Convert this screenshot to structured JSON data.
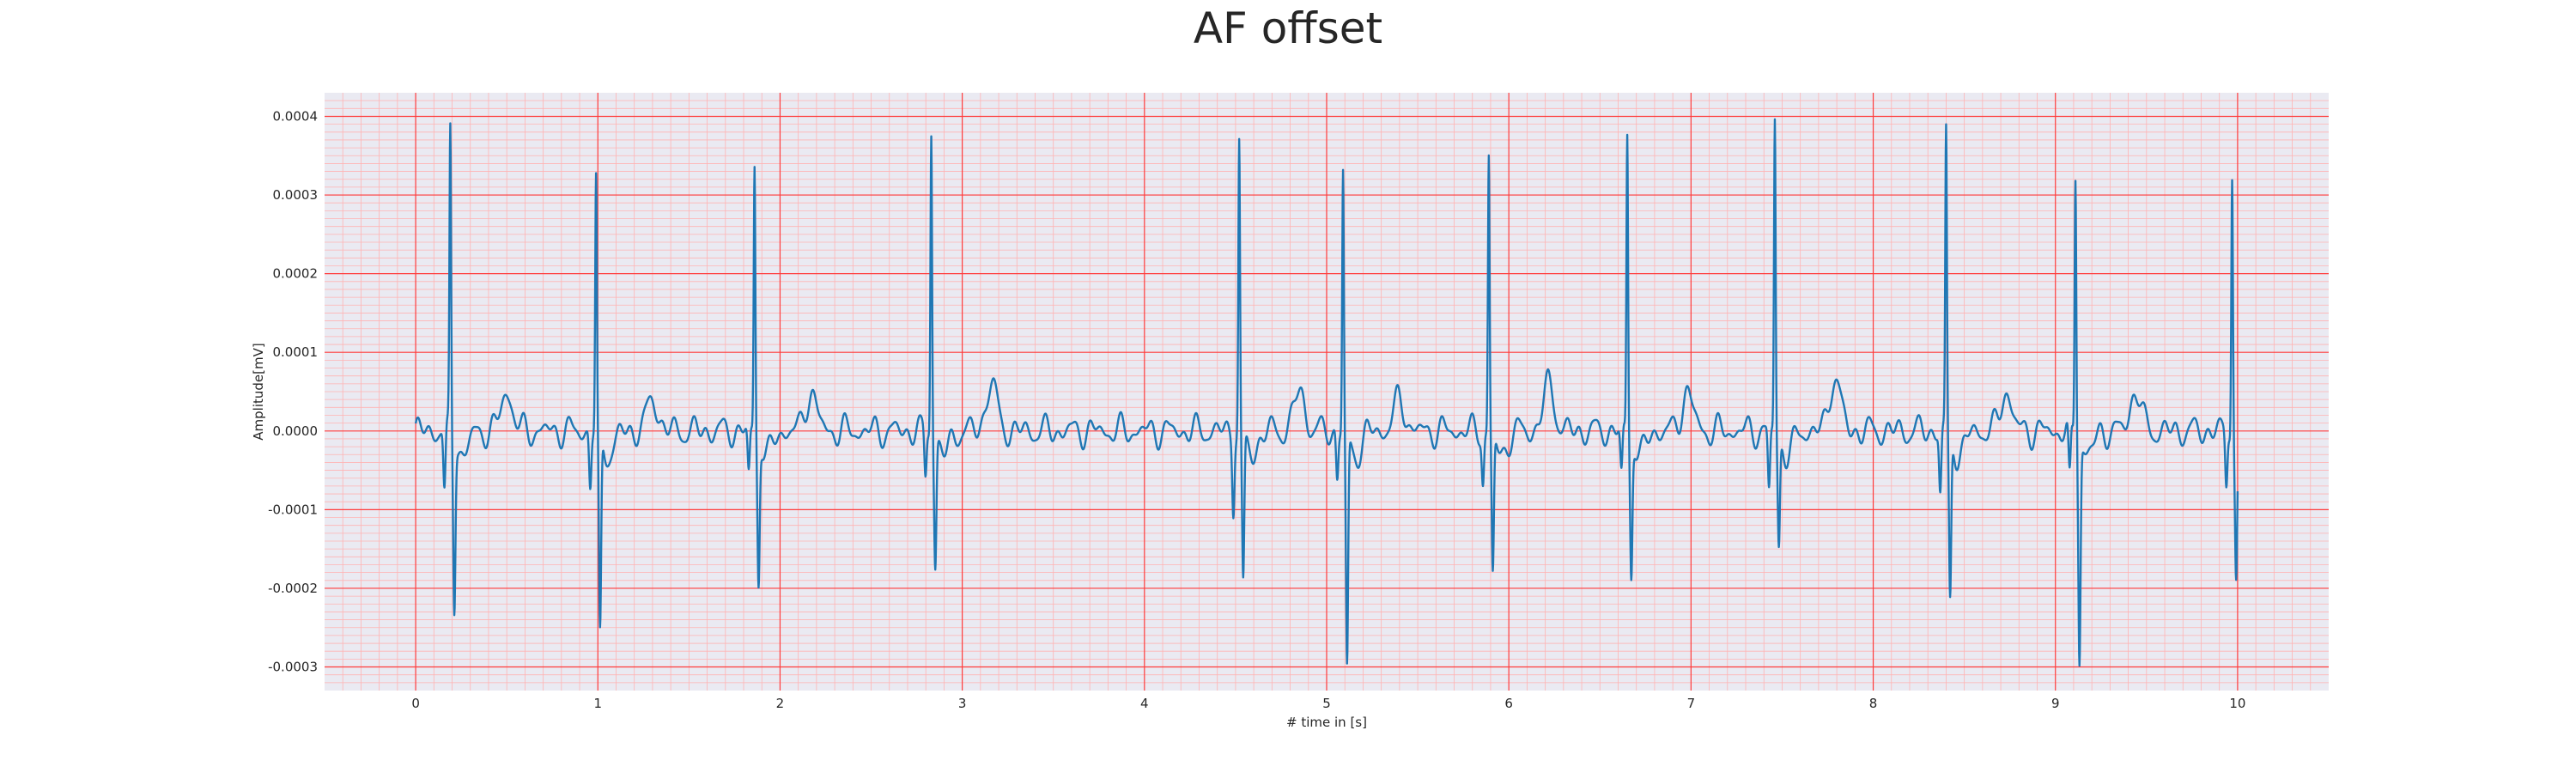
{
  "chart_data": {
    "type": "line",
    "title": "AF offset",
    "xlabel": "# time in [s]",
    "ylabel": "Amplitude[mV]",
    "xlim": [
      -0.5,
      10.5
    ],
    "ylim": [
      -0.00033,
      0.00043
    ],
    "xticks": [
      0,
      1,
      2,
      3,
      4,
      5,
      6,
      7,
      8,
      9,
      10
    ],
    "xtick_labels": [
      "0",
      "1",
      "2",
      "3",
      "4",
      "5",
      "6",
      "7",
      "8",
      "9",
      "10"
    ],
    "yticks": [
      0.0004,
      0.0003,
      0.0002,
      0.0001,
      0.0,
      -0.0001,
      -0.0002,
      -0.0003
    ],
    "ytick_labels": [
      "0.0004",
      "0.0003",
      "0.0002",
      "0.0001",
      "0.0000",
      "-0.0001",
      "-0.0002",
      "-0.0003"
    ],
    "grid": true,
    "legend": false,
    "colors": {
      "line": "#1f77b4",
      "major_grid": "#ff3b3b",
      "minor_grid": "#ffb3b3",
      "background": "#eaeaf2"
    },
    "series": [
      {
        "beats": [
          {
            "t": 0.19,
            "r": 0.00038,
            "s": -0.00021,
            "pre": -8e-05
          },
          {
            "t": 0.99,
            "r": 0.00032,
            "s": -0.00026,
            "pre": -7e-05
          },
          {
            "t": 1.86,
            "r": 0.00034,
            "s": -0.00018,
            "pre": -6e-05
          },
          {
            "t": 2.83,
            "r": 0.00039,
            "s": -0.00016,
            "pre": -6e-05
          },
          {
            "t": 4.52,
            "r": 0.00037,
            "s": -0.00019,
            "pre": -9e-05
          },
          {
            "t": 5.09,
            "r": 0.00033,
            "s": -0.0003,
            "pre": -6e-05
          },
          {
            "t": 5.89,
            "r": 0.00035,
            "s": -0.00018,
            "pre": -6e-05
          },
          {
            "t": 6.65,
            "r": 0.00038,
            "s": -0.00017,
            "pre": -6e-05
          },
          {
            "t": 7.46,
            "r": 0.0004,
            "s": -0.00014,
            "pre": -8e-05
          },
          {
            "t": 8.4,
            "r": 0.00038,
            "s": -0.00021,
            "pre": -8e-05
          },
          {
            "t": 9.11,
            "r": 0.00033,
            "s": -0.00028,
            "pre": -7e-05
          },
          {
            "t": 9.97,
            "r": 0.00034,
            "s": -0.00018,
            "pre": -7e-05
          }
        ],
        "t_waves": [
          {
            "t": 0.5,
            "a": 5e-05
          },
          {
            "t": 1.3,
            "a": 4e-05
          },
          {
            "t": 2.17,
            "a": 5e-05
          },
          {
            "t": 3.16,
            "a": 6e-05
          },
          {
            "t": 4.85,
            "a": 5e-05
          },
          {
            "t": 5.4,
            "a": 4e-05
          },
          {
            "t": 6.22,
            "a": 6e-05
          },
          {
            "t": 6.98,
            "a": 5e-05
          },
          {
            "t": 7.79,
            "a": 7e-05
          },
          {
            "t": 8.73,
            "a": 5e-05
          },
          {
            "t": 9.44,
            "a": 5e-05
          }
        ],
        "t_start": 0.0,
        "t_end": 10.0
      }
    ]
  }
}
